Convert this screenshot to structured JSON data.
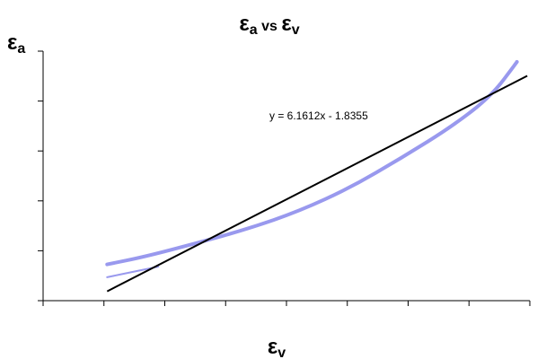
{
  "chart_data": {
    "type": "line",
    "title": {
      "symbol": "ε",
      "sub": "a",
      "middle": " vs ",
      "symbol2": "ε",
      "sub2": "v"
    },
    "xlabel": {
      "symbol": "ε",
      "sub": "v"
    },
    "ylabel": {
      "symbol": "ε",
      "sub": "a"
    },
    "trendline": {
      "label": "y = 6.1612x - 1.8355",
      "slope": 6.1612,
      "intercept": -1.8355,
      "x_range": [
        0.305,
        0.469
      ]
    },
    "xlim": [
      0.28,
      0.47
    ],
    "ylim": [
      0.0,
      1.17
    ],
    "x_tick_count": 8,
    "y_tick_count": 5,
    "tick_labels_visible": false,
    "grid": false,
    "series": [
      {
        "x": [
          0.305,
          0.32,
          0.34,
          0.36,
          0.38,
          0.4,
          0.42,
          0.44,
          0.455,
          0.465
        ],
        "y": [
          0.17,
          0.207,
          0.27,
          0.337,
          0.42,
          0.53,
          0.67,
          0.82,
          0.96,
          1.12
        ]
      },
      {
        "x": [
          0.305,
          0.315,
          0.325
        ],
        "y": [
          0.11,
          0.135,
          0.16
        ]
      }
    ],
    "colors": {
      "series": "#9999ee",
      "trendline": "#000000",
      "axis": "#000000"
    }
  }
}
